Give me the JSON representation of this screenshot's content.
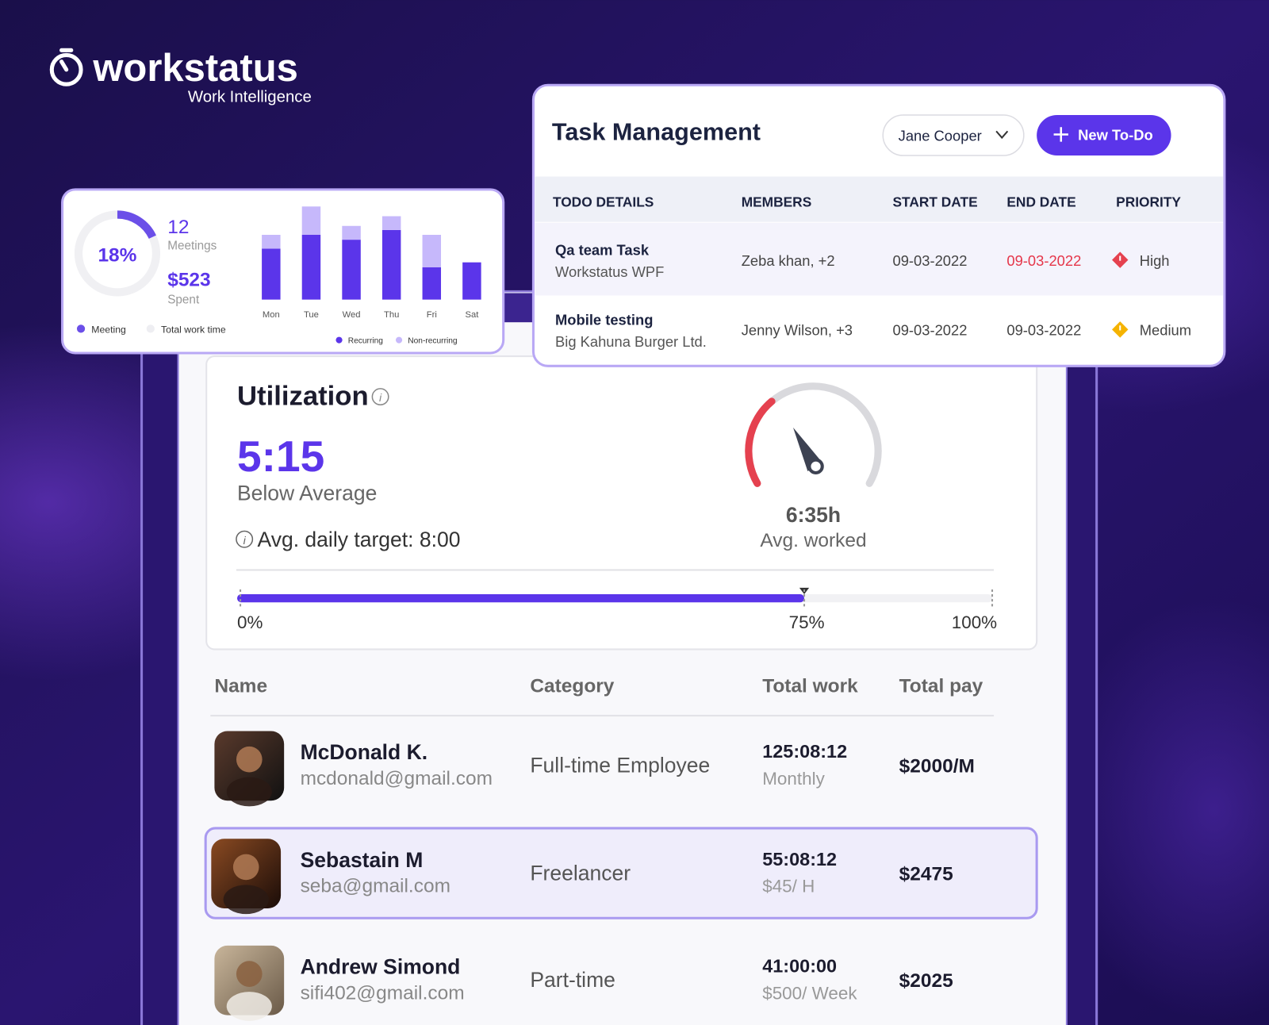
{
  "logo": {
    "name": "workstatus",
    "tagline": "Work Intelligence"
  },
  "task_management": {
    "title": "Task Management",
    "member_filter": "Jane Cooper",
    "new_button": "New To-Do",
    "columns": [
      "TODO DETAILS",
      "MEMBERS",
      "START DATE",
      "END DATE",
      "PRIORITY"
    ],
    "rows": [
      {
        "todo": "Qa team Task",
        "project": "Workstatus WPF",
        "members": "Zeba khan, +2",
        "start_date": "09-03-2022",
        "end_date": "09-03-2022",
        "priority": "High"
      },
      {
        "todo": "Mobile testing",
        "project": "Big Kahuna Burger Ltd.",
        "members": "Jenny Wilson, +3",
        "start_date": "09-03-2022",
        "end_date": "09-03-2022",
        "priority": "Medium"
      }
    ]
  },
  "meetings_card": {
    "donut": {
      "value": 18,
      "label": "18%"
    },
    "meetings": 12,
    "meetings_label": "Meetings",
    "spent": "$523",
    "spent_label": "Spent",
    "legend": [
      "Meeting",
      "Total work time"
    ]
  },
  "chart_data": {
    "type": "bar",
    "stacked": true,
    "categories": [
      "Mon",
      "Tue",
      "Wed",
      "Thu",
      "Fri",
      "Sat"
    ],
    "series": [
      {
        "name": "Recurring",
        "color": "#5b35ea",
        "values": [
          63,
          80,
          74,
          86,
          40,
          46
        ]
      },
      {
        "name": "Non-recurring",
        "color": "#c6b8fb",
        "values": [
          17,
          35,
          17,
          17,
          40,
          0
        ]
      }
    ],
    "ylim": [
      0,
      120
    ]
  },
  "utilization": {
    "title": "Utilization",
    "value": "5:15",
    "status": "Below Average",
    "target": "Avg. daily target: 8:00",
    "avg_worked": "6:35h",
    "avg_worked_label": "Avg. worked",
    "progress": {
      "value": 75,
      "xlim": [
        0,
        100
      ],
      "ticks": [
        {
          "value": 0,
          "label": "0%"
        },
        {
          "value": 75,
          "label": "75%"
        },
        {
          "value": 100,
          "label": "100%"
        }
      ]
    }
  },
  "team_table": {
    "columns": [
      "Name",
      "Category",
      "Total work",
      "Total pay"
    ],
    "rows": [
      {
        "name": "McDonald K.",
        "email": "mcdonald@gmail.com",
        "category": "Full-time Employee",
        "total_work": "125:08:12",
        "rate": "Monthly",
        "total_pay": "$2000/M"
      },
      {
        "name": "Sebastain M",
        "email": "seba@gmail.com",
        "category": "Freelancer",
        "total_work": "55:08:12",
        "rate": "$45/ H",
        "total_pay": "$2475"
      },
      {
        "name": "Andrew Simond",
        "email": "sifi402@gmail.com",
        "category": "Part-time",
        "total_work": "41:00:00",
        "rate": "$500/ Week",
        "total_pay": "$2025"
      }
    ]
  }
}
